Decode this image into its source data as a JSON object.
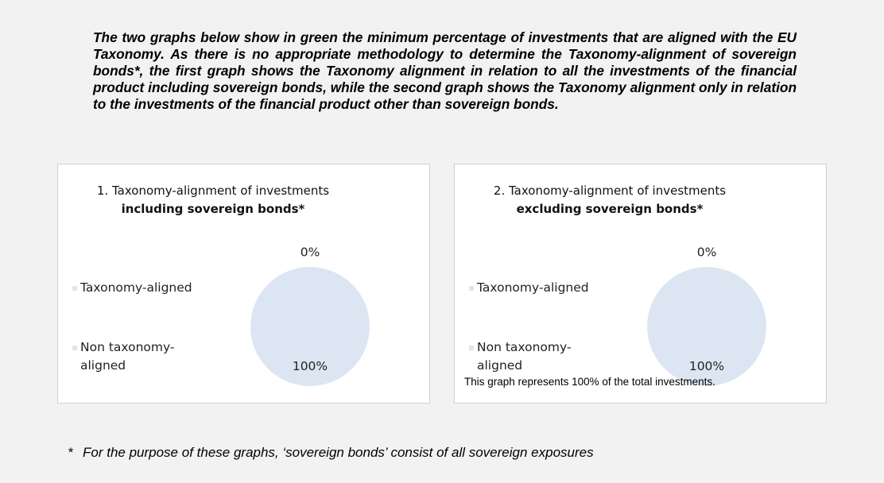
{
  "intro": "The two graphs below show in green the minimum percentage of investments that are aligned with the EU Taxonomy. As there is no appropriate methodology to determine the Taxonomy-alignment of sovereign bonds*, the first graph shows the Taxonomy alignment in relation to all the investments of the financial product including sovereign bonds, while the second graph shows the Taxonomy alignment only in relation to the investments of the financial product other than sovereign bonds.",
  "chart_data": [
    {
      "type": "pie",
      "title": "1. Taxonomy-alignment of investments",
      "subtitle": "including sovereign bonds*",
      "categories": [
        "Taxonomy-aligned",
        "Non taxonomy-aligned"
      ],
      "values": [
        0,
        100
      ],
      "value_labels": [
        "0%",
        "100%"
      ],
      "colors": [
        "#dce6f2",
        "#dce6f2"
      ],
      "legend": "left"
    },
    {
      "type": "pie",
      "title": "2. Taxonomy-alignment of investments",
      "subtitle": "excluding sovereign bonds*",
      "categories": [
        "Taxonomy-aligned",
        "Non taxonomy-aligned"
      ],
      "values": [
        0,
        100
      ],
      "value_labels": [
        "0%",
        "100%"
      ],
      "colors": [
        "#dce6f2",
        "#dce6f2"
      ],
      "legend": "left",
      "note": "This graph represents 100% of the total investments."
    }
  ],
  "footnote": {
    "marker": "*",
    "text": "For the purpose of these graphs, ‘sovereign bonds’ consist of  all sovereign exposures"
  }
}
